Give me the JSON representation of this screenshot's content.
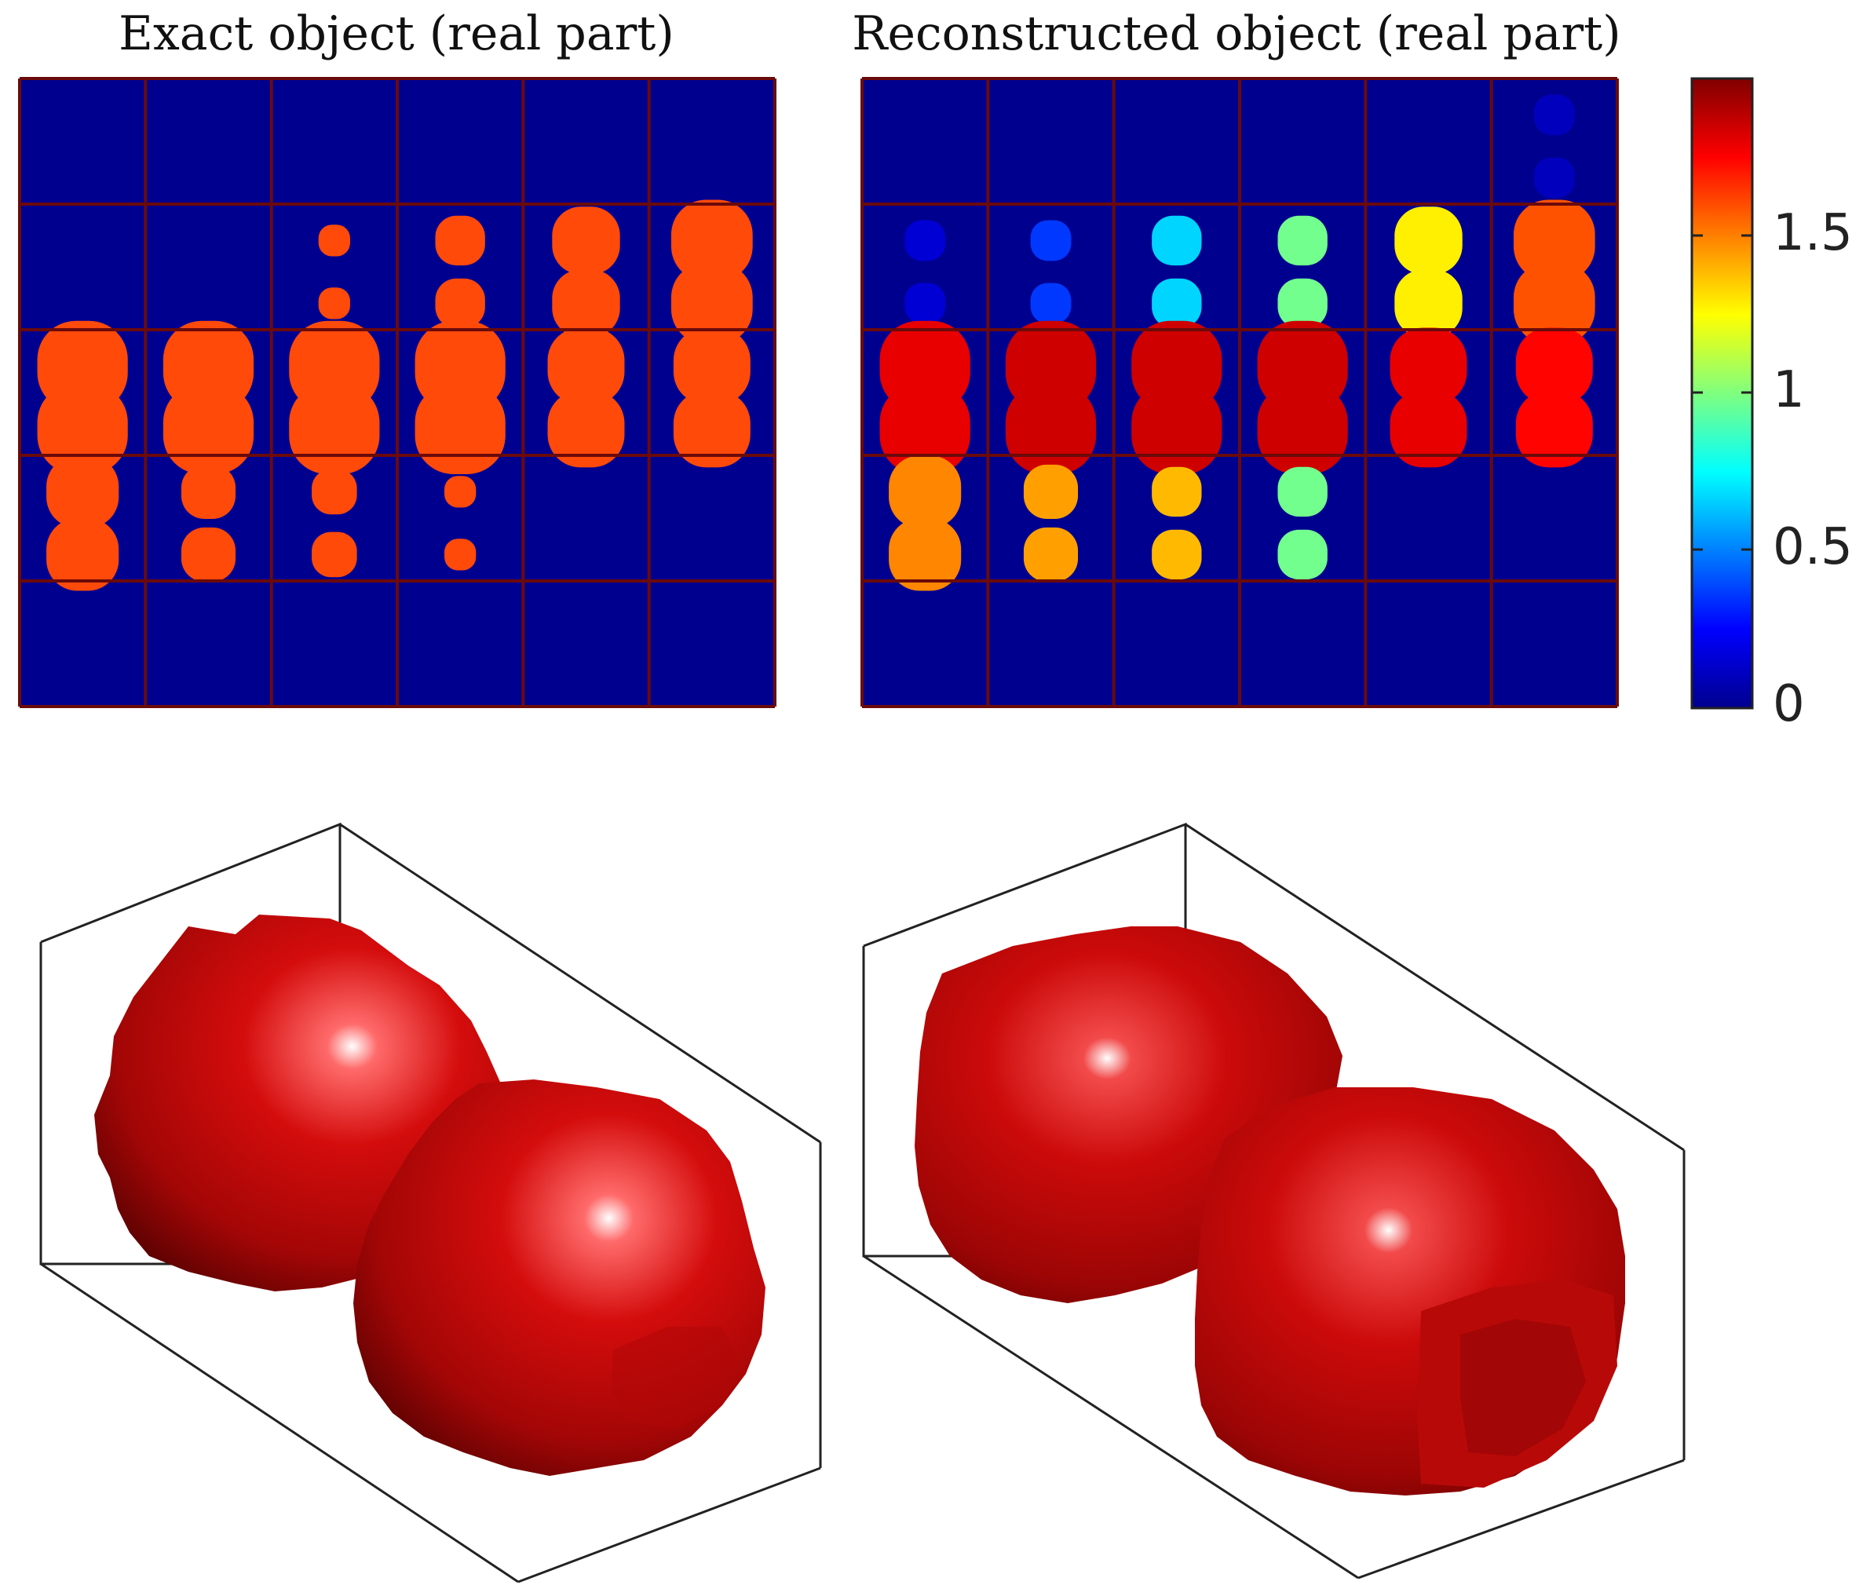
{
  "figure": {
    "panels": [
      {
        "id": "exact",
        "title": "Exact object (real part)"
      },
      {
        "id": "reconstructed",
        "title": "Reconstructed object (real part)"
      }
    ],
    "colorbar": {
      "ticks": [
        "1.5",
        "1",
        "0.5",
        "0"
      ],
      "tick_values": [
        1.5,
        1,
        0.5,
        0
      ],
      "range": [
        0,
        1.95
      ],
      "colormap": "jet"
    },
    "grid": {
      "rows": 5,
      "cols": 6
    },
    "colors": {
      "background_blue": "#00008F",
      "slice_border": "#6B0A0A",
      "exact_value_color": "#FF4A0A",
      "surface_red": "#C80A0A",
      "box_line": "#222222"
    },
    "exact_slices": [
      [
        0,
        0,
        0,
        0,
        0,
        0
      ],
      [
        0,
        0,
        0.35,
        0.55,
        0.75,
        0.9
      ],
      [
        1,
        1,
        1,
        1,
        0.85,
        0.85
      ],
      [
        0.8,
        0.6,
        0.5,
        0.35,
        0,
        0
      ],
      [
        0,
        0,
        0,
        0,
        0,
        0
      ]
    ],
    "reconstructed_values": [
      [
        0,
        0,
        0,
        0,
        0,
        0.1
      ],
      [
        0.15,
        0.35,
        0.65,
        0.95,
        1.25,
        1.55
      ],
      [
        1.75,
        1.8,
        1.8,
        1.8,
        1.75,
        1.7
      ],
      [
        1.45,
        1.4,
        1.35,
        0.95,
        0,
        0
      ],
      [
        0,
        0,
        0,
        0,
        0,
        0
      ]
    ]
  }
}
